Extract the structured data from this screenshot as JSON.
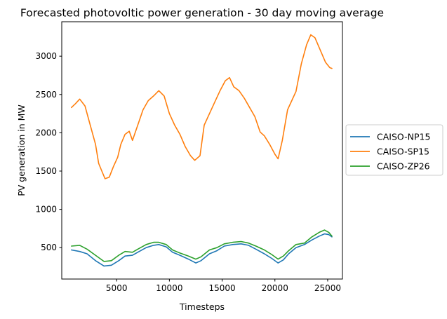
{
  "chart_data": {
    "type": "line",
    "title": "Forecasted photovoltic power generation - 30 day moving average",
    "xlabel": "Timesteps",
    "ylabel": "PV generation in MW",
    "xlim": [
      -200,
      26400
    ],
    "ylim": [
      90,
      3450
    ],
    "x_ticks": [
      5000,
      10000,
      15000,
      20000,
      25000
    ],
    "x_tick_labels": [
      "5000",
      "10000",
      "15000",
      "20000",
      "25000"
    ],
    "y_ticks": [
      500,
      1000,
      1500,
      2000,
      2500,
      3000
    ],
    "y_tick_labels": [
      "500",
      "1000",
      "1500",
      "2000",
      "2500",
      "3000"
    ],
    "grid": false,
    "legend_position": "outside-right",
    "series": [
      {
        "name": "CAISO-NP15",
        "color": "#1f77b4",
        "points": [
          [
            720,
            470
          ],
          [
            1500,
            450
          ],
          [
            2200,
            420
          ],
          [
            3000,
            330
          ],
          [
            3800,
            260
          ],
          [
            4500,
            270
          ],
          [
            5200,
            330
          ],
          [
            5800,
            390
          ],
          [
            6500,
            400
          ],
          [
            7000,
            440
          ],
          [
            7800,
            500
          ],
          [
            8500,
            530
          ],
          [
            9000,
            540
          ],
          [
            9700,
            510
          ],
          [
            10300,
            440
          ],
          [
            11000,
            400
          ],
          [
            11800,
            350
          ],
          [
            12500,
            300
          ],
          [
            13000,
            330
          ],
          [
            13800,
            420
          ],
          [
            14500,
            460
          ],
          [
            15200,
            520
          ],
          [
            16000,
            540
          ],
          [
            16800,
            550
          ],
          [
            17500,
            530
          ],
          [
            18200,
            480
          ],
          [
            19000,
            420
          ],
          [
            19700,
            360
          ],
          [
            20300,
            300
          ],
          [
            20800,
            340
          ],
          [
            21300,
            420
          ],
          [
            22000,
            500
          ],
          [
            22800,
            540
          ],
          [
            23500,
            600
          ],
          [
            24200,
            650
          ],
          [
            24700,
            680
          ],
          [
            25100,
            670
          ],
          [
            25400,
            640
          ]
        ]
      },
      {
        "name": "CAISO-SP15",
        "color": "#ff7f0e",
        "points": [
          [
            720,
            2330
          ],
          [
            1100,
            2380
          ],
          [
            1500,
            2440
          ],
          [
            2000,
            2350
          ],
          [
            2500,
            2100
          ],
          [
            3000,
            1850
          ],
          [
            3300,
            1600
          ],
          [
            3600,
            1500
          ],
          [
            3900,
            1400
          ],
          [
            4300,
            1420
          ],
          [
            4700,
            1560
          ],
          [
            5100,
            1680
          ],
          [
            5400,
            1850
          ],
          [
            5800,
            1980
          ],
          [
            6200,
            2020
          ],
          [
            6500,
            1900
          ],
          [
            7000,
            2100
          ],
          [
            7500,
            2300
          ],
          [
            8000,
            2420
          ],
          [
            8500,
            2480
          ],
          [
            9000,
            2550
          ],
          [
            9500,
            2480
          ],
          [
            10000,
            2250
          ],
          [
            10500,
            2100
          ],
          [
            11000,
            1980
          ],
          [
            11500,
            1820
          ],
          [
            12000,
            1700
          ],
          [
            12400,
            1640
          ],
          [
            12900,
            1700
          ],
          [
            13300,
            2100
          ],
          [
            13800,
            2250
          ],
          [
            14300,
            2400
          ],
          [
            14800,
            2550
          ],
          [
            15300,
            2680
          ],
          [
            15700,
            2720
          ],
          [
            16100,
            2600
          ],
          [
            16600,
            2550
          ],
          [
            17100,
            2450
          ],
          [
            17600,
            2330
          ],
          [
            18100,
            2210
          ],
          [
            18600,
            2010
          ],
          [
            19000,
            1960
          ],
          [
            19500,
            1850
          ],
          [
            20000,
            1720
          ],
          [
            20300,
            1660
          ],
          [
            20700,
            1900
          ],
          [
            21200,
            2300
          ],
          [
            21600,
            2420
          ],
          [
            22000,
            2540
          ],
          [
            22500,
            2900
          ],
          [
            23000,
            3150
          ],
          [
            23400,
            3280
          ],
          [
            23800,
            3240
          ],
          [
            24300,
            3080
          ],
          [
            24800,
            2920
          ],
          [
            25200,
            2850
          ],
          [
            25400,
            2840
          ]
        ]
      },
      {
        "name": "CAISO-ZP26",
        "color": "#2ca02c",
        "points": [
          [
            720,
            520
          ],
          [
            1500,
            530
          ],
          [
            2200,
            480
          ],
          [
            3000,
            400
          ],
          [
            3800,
            320
          ],
          [
            4500,
            330
          ],
          [
            5200,
            400
          ],
          [
            5800,
            450
          ],
          [
            6500,
            440
          ],
          [
            7000,
            480
          ],
          [
            7800,
            540
          ],
          [
            8500,
            570
          ],
          [
            9000,
            570
          ],
          [
            9700,
            540
          ],
          [
            10300,
            470
          ],
          [
            11000,
            430
          ],
          [
            11800,
            390
          ],
          [
            12500,
            350
          ],
          [
            13000,
            380
          ],
          [
            13800,
            470
          ],
          [
            14500,
            500
          ],
          [
            15200,
            550
          ],
          [
            16000,
            570
          ],
          [
            16800,
            580
          ],
          [
            17500,
            560
          ],
          [
            18200,
            520
          ],
          [
            19000,
            470
          ],
          [
            19700,
            410
          ],
          [
            20300,
            350
          ],
          [
            20800,
            390
          ],
          [
            21300,
            460
          ],
          [
            22000,
            540
          ],
          [
            22800,
            560
          ],
          [
            23500,
            640
          ],
          [
            24200,
            700
          ],
          [
            24700,
            730
          ],
          [
            25100,
            700
          ],
          [
            25400,
            650
          ]
        ]
      }
    ]
  }
}
